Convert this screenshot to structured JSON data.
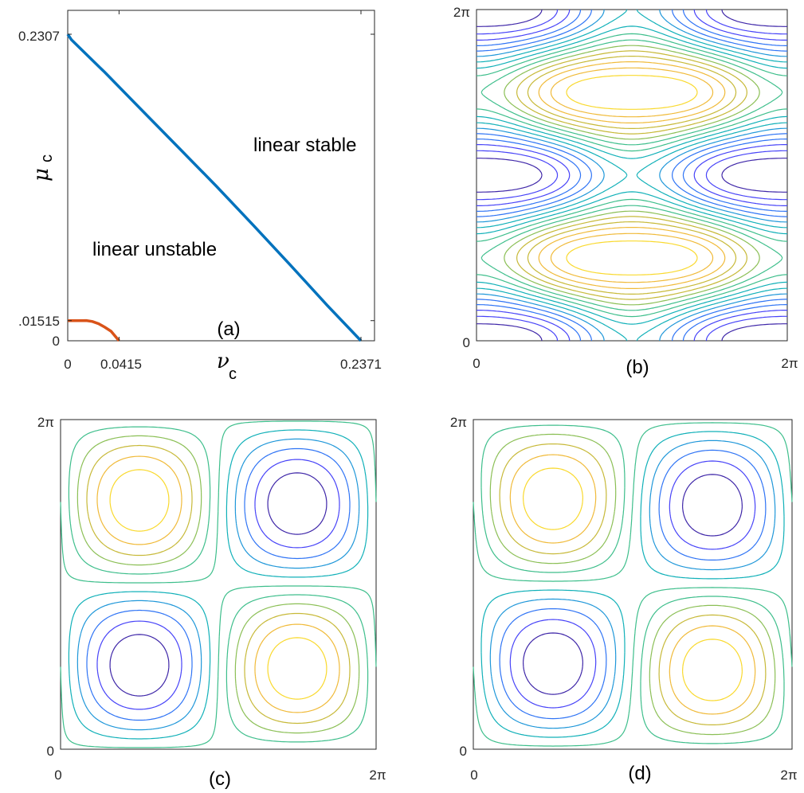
{
  "chart_data": [
    {
      "panel": "(a)",
      "type": "line",
      "xlabel": "ν",
      "xlabel_sub": "c",
      "ylabel": "μ",
      "ylabel_sub": "c",
      "xlim": [
        0,
        0.2371
      ],
      "ylim": [
        0,
        0.2307
      ],
      "xticks": [
        0,
        0.0415,
        0.2371
      ],
      "xtick_labels": [
        "0",
        "0.0415",
        "0.2371"
      ],
      "yticks": [
        0,
        0.01515,
        0.2307
      ],
      "ytick_labels": [
        "0",
        ".01515",
        "0.2307"
      ],
      "annotations": [
        {
          "text": "linear stable",
          "x": 0.136,
          "y": 0.134
        },
        {
          "text": "linear unstable",
          "x": 0.051,
          "y": 0.062
        }
      ],
      "series": [
        {
          "color": "#0072BD",
          "x": [
            0,
            0.003,
            0.03,
            0.06,
            0.09,
            0.12,
            0.15,
            0.18,
            0.21,
            0.2371
          ],
          "y": [
            0.2307,
            0.2265,
            0.202,
            0.1735,
            0.145,
            0.1165,
            0.087,
            0.057,
            0.0265,
            0
          ]
        },
        {
          "color": "#D95319",
          "x": [
            0,
            0.008,
            0.015,
            0.02,
            0.025,
            0.03,
            0.035,
            0.0415
          ],
          "y": [
            0.01515,
            0.01515,
            0.0152,
            0.0145,
            0.0128,
            0.0102,
            0.0072,
            0
          ]
        }
      ]
    },
    {
      "panel": "(b)",
      "type": "contour",
      "field": "psi = -a*cos(x) - cos(2y)",
      "a": 0.6,
      "xlim": [
        "0",
        "2π"
      ],
      "ylim": [
        "0",
        "2π"
      ],
      "xtick_labels": [
        "0",
        "2π"
      ],
      "ytick_labels": [
        "0",
        "2π"
      ],
      "levels": 16
    },
    {
      "panel": "(c)",
      "type": "contour",
      "field": "psi = sin(x)*sin(y) + eps*sin(y)",
      "eps": 0.03,
      "xlim": [
        "0",
        "2π"
      ],
      "ylim": [
        "0",
        "2π"
      ],
      "xtick_labels": [
        "0",
        "2π"
      ],
      "ytick_labels": [
        "0",
        "2π"
      ],
      "levels": 11
    },
    {
      "panel": "(d)",
      "type": "contour",
      "field": "psi = sin(x)*sin(y) + eps*sin(y)",
      "eps": 0.06,
      "xlim": [
        "0",
        "2π"
      ],
      "ylim": [
        "0",
        "2π"
      ],
      "xtick_labels": [
        "0",
        "2π"
      ],
      "ytick_labels": [
        "0",
        "2π"
      ],
      "levels": 11
    }
  ],
  "colormap": [
    "#3E26A8",
    "#4743F8",
    "#2F74F5",
    "#1F97D9",
    "#10B0B8",
    "#3DBE8B",
    "#8BBF55",
    "#C7B938",
    "#F0BA39",
    "#F9D92D"
  ]
}
